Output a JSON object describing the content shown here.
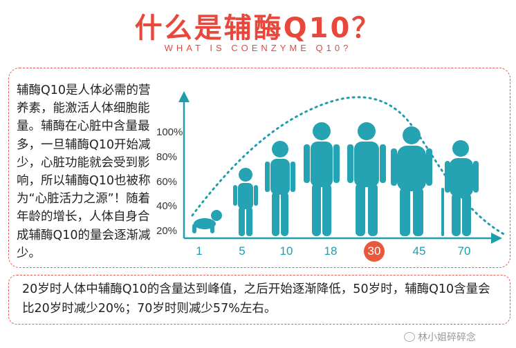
{
  "header": {
    "title": "什么是辅酶Q10？",
    "subtitle": "WHAT IS COENZYME Q10?"
  },
  "description": "辅酶Q10是人体必需的营养素，能激活人体细胞能量。辅酶在心脏中含量最多，一旦辅酶Q10开始减少，心脏功能就会受到影响，所以辅酶Q10也被称为“心脏活力之源”！随着年龄的增长，人体自身合成辅酶Q10的量会逐渐减少。",
  "summary": "20岁时人体中辅酶Q10的含量达到峰值，之后开始逐渐降低，50岁时，辅酶Q10含量会比20岁时减少20%；70岁时则减少57%左右。",
  "chart_data": {
    "type": "line",
    "y_ticks": [
      "100%",
      "80%",
      "60%",
      "40%",
      "20%"
    ],
    "x_ticks": [
      "1",
      "5",
      "10",
      "18",
      "30",
      "45",
      "70"
    ],
    "highlight_tick": "30",
    "colors": {
      "accent": "#1f9dab",
      "highlight": "#e8583a",
      "title": "#e8473c"
    }
  },
  "watermark": "林小姐碎碎念",
  "icons": {
    "watermark": "wechat-icon"
  }
}
